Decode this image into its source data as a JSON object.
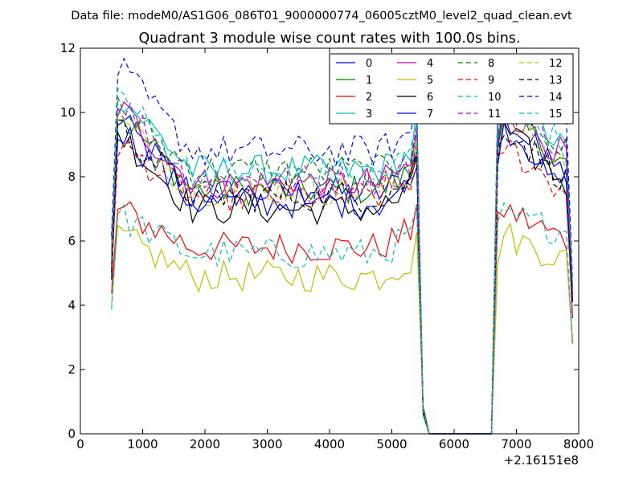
{
  "figure": {
    "suptitle": "Data file: modeM0/AS1G06_086T01_9000000774_06005cztM0_level2_quad_clean.evt"
  },
  "chart_data": {
    "type": "line",
    "title": "Quadrant 3 module wise count rates with 100.0s bins.",
    "xlabel": "",
    "ylabel": "",
    "xlim": [
      0,
      8000
    ],
    "ylim": [
      0,
      12
    ],
    "x_ticks": [
      0,
      1000,
      2000,
      3000,
      4000,
      5000,
      6000,
      7000,
      8000
    ],
    "y_ticks": [
      0,
      2,
      4,
      6,
      8,
      10,
      12
    ],
    "x_offset_label": "+2.16151e8",
    "grid": false,
    "legend_position": "top-right",
    "legend_columns": 4,
    "x": [
      500,
      600,
      700,
      800,
      900,
      1000,
      1100,
      1200,
      1300,
      1400,
      1500,
      1600,
      1700,
      1800,
      1900,
      2000,
      2100,
      2200,
      2300,
      2400,
      2500,
      2600,
      2700,
      2800,
      2900,
      3000,
      3100,
      3200,
      3300,
      3400,
      3500,
      3600,
      3700,
      3800,
      3900,
      4000,
      4100,
      4200,
      4300,
      4400,
      4500,
      4600,
      4700,
      4800,
      4900,
      5000,
      5100,
      5200,
      5300,
      5400,
      5500,
      5600,
      5700,
      5800,
      5900,
      6000,
      6100,
      6200,
      6300,
      6400,
      6500,
      6600,
      6700,
      6800,
      6900,
      7000,
      7100,
      7200,
      7300,
      7400,
      7500,
      7600,
      7700,
      7800,
      7900
    ],
    "series": [
      {
        "name": "0",
        "color": "#0000ff",
        "dash": "solid",
        "base": 7.5,
        "peak": 9.8,
        "end": 8.0
      },
      {
        "name": "1",
        "color": "#008000",
        "dash": "solid",
        "base": 7.6,
        "peak": 10.0,
        "end": 8.4
      },
      {
        "name": "2",
        "color": "#ff0000",
        "dash": "solid",
        "base": 5.8,
        "peak": 7.0,
        "end": 6.0
      },
      {
        "name": "3",
        "color": "#00bfbf",
        "dash": "solid",
        "base": 8.2,
        "peak": 10.6,
        "end": 8.8
      },
      {
        "name": "4",
        "color": "#bf00bf",
        "dash": "solid",
        "base": 7.8,
        "peak": 10.2,
        "end": 8.6
      },
      {
        "name": "5",
        "color": "#bfbf00",
        "dash": "solid",
        "base": 4.9,
        "peak": 6.2,
        "end": 5.4
      },
      {
        "name": "6",
        "color": "#000000",
        "dash": "solid",
        "base": 7.0,
        "peak": 9.4,
        "end": 7.8
      },
      {
        "name": "7",
        "color": "#0000ff",
        "dash": "solid",
        "base": 7.2,
        "peak": 9.6,
        "end": 7.9
      },
      {
        "name": "8",
        "color": "#008000",
        "dash": "dashed",
        "base": 8.2,
        "peak": 10.2,
        "end": 8.8
      },
      {
        "name": "9",
        "color": "#ff0000",
        "dash": "dashed",
        "base": 7.4,
        "peak": 9.0,
        "end": 7.5
      },
      {
        "name": "10",
        "color": "#00bfbf",
        "dash": "dashed",
        "base": 5.6,
        "peak": 6.8,
        "end": 6.3
      },
      {
        "name": "11",
        "color": "#bf00bf",
        "dash": "dashed",
        "base": 7.9,
        "peak": 10.4,
        "end": 8.8
      },
      {
        "name": "12",
        "color": "#bfbf00",
        "dash": "dashed",
        "base": 7.6,
        "peak": 9.8,
        "end": 8.4
      },
      {
        "name": "13",
        "color": "#000000",
        "dash": "dashed",
        "base": 7.4,
        "peak": 9.6,
        "end": 7.9
      },
      {
        "name": "14",
        "color": "#0000ff",
        "dash": "dashed",
        "base": 8.8,
        "peak": 11.4,
        "end": 9.6
      },
      {
        "name": "15",
        "color": "#00bfbf",
        "dash": "dashed",
        "base": 8.1,
        "peak": 10.6,
        "end": 8.9
      }
    ]
  }
}
